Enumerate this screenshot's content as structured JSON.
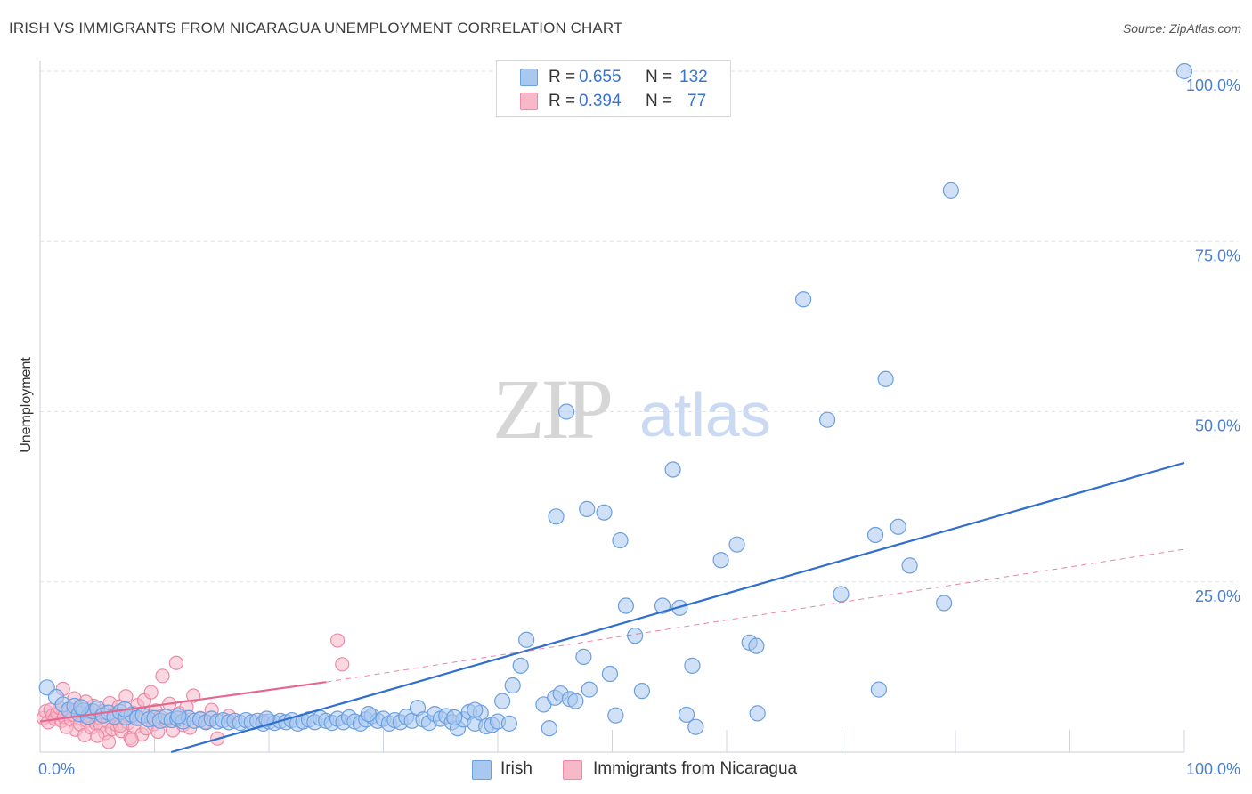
{
  "title": "IRISH VS IMMIGRANTS FROM NICARAGUA UNEMPLOYMENT CORRELATION CHART",
  "source": "Source: ZipAtlas.com",
  "watermark": {
    "zip": "ZIP",
    "atlas": "atlas"
  },
  "colors": {
    "irish_fill": "#a9c8f0",
    "irish_stroke": "#6a9fe0",
    "irish_line": "#2e6fcf",
    "nic_fill": "#f7b8c8",
    "nic_stroke": "#ec8aa6",
    "nic_line": "#e6678e",
    "grid": "#dde1e8",
    "tick": "#4a7fd0"
  },
  "legend_top": {
    "rows": [
      {
        "r_label": "R =",
        "r_value": "0.655",
        "n_label": "N =",
        "n_value": "132"
      },
      {
        "r_label": "R =",
        "r_value": "0.394",
        "n_label": "N =",
        "n_value": "77"
      }
    ]
  },
  "bottom_legend": {
    "irish": "Irish",
    "nicaragua": "Immigrants from Nicaragua"
  },
  "chart_data": {
    "type": "scatter",
    "ylabel": "Unemployment",
    "xlim": [
      0,
      100
    ],
    "ylim": [
      0,
      100
    ],
    "x_tick_labels": [
      "0.0%",
      "100.0%"
    ],
    "y_tick_labels": [
      "100.0%",
      "75.0%",
      "50.0%",
      "25.0%"
    ],
    "y_tick_values": [
      100,
      75,
      50,
      25
    ],
    "grid": true,
    "series": [
      {
        "name": "Irish",
        "stats": {
          "R": 0.655,
          "N": 132
        },
        "trend": {
          "x0": 0,
          "y0": -5.5,
          "x1": 100,
          "y1": 42.5,
          "dashed_ext": false
        },
        "points": [
          [
            0.6,
            9.5
          ],
          [
            1.4,
            8.1
          ],
          [
            2.0,
            7.0
          ],
          [
            2.5,
            6.2
          ],
          [
            3.0,
            6.8
          ],
          [
            3.4,
            5.6
          ],
          [
            3.8,
            6.1
          ],
          [
            4.2,
            5.2
          ],
          [
            4.6,
            6.0
          ],
          [
            5.0,
            6.4
          ],
          [
            5.5,
            5.4
          ],
          [
            6.0,
            5.8
          ],
          [
            6.5,
            5.2
          ],
          [
            7.0,
            5.9
          ],
          [
            7.5,
            5.1
          ],
          [
            8.0,
            5.5
          ],
          [
            8.5,
            5.0
          ],
          [
            9.0,
            5.4
          ],
          [
            9.5,
            4.8
          ],
          [
            10.0,
            5.0
          ],
          [
            10.5,
            4.6
          ],
          [
            11.0,
            5.2
          ],
          [
            11.5,
            4.7
          ],
          [
            12.0,
            4.9
          ],
          [
            12.5,
            4.5
          ],
          [
            13.0,
            5.0
          ],
          [
            13.5,
            4.6
          ],
          [
            14.0,
            4.8
          ],
          [
            14.5,
            4.4
          ],
          [
            15.0,
            4.9
          ],
          [
            15.5,
            4.5
          ],
          [
            16.0,
            4.7
          ],
          [
            16.5,
            4.4
          ],
          [
            17.0,
            4.6
          ],
          [
            17.5,
            4.3
          ],
          [
            18.0,
            4.7
          ],
          [
            18.5,
            4.4
          ],
          [
            19.0,
            4.6
          ],
          [
            19.5,
            4.2
          ],
          [
            20.0,
            4.5
          ],
          [
            20.5,
            4.3
          ],
          [
            21.0,
            4.6
          ],
          [
            21.5,
            4.4
          ],
          [
            22.0,
            4.7
          ],
          [
            22.5,
            4.2
          ],
          [
            23.0,
            4.5
          ],
          [
            23.5,
            4.8
          ],
          [
            24.0,
            4.4
          ],
          [
            24.5,
            5.0
          ],
          [
            25.0,
            4.6
          ],
          [
            25.5,
            4.3
          ],
          [
            26.0,
            4.9
          ],
          [
            26.5,
            4.4
          ],
          [
            27.0,
            5.1
          ],
          [
            27.5,
            4.5
          ],
          [
            28.0,
            4.2
          ],
          [
            28.5,
            4.8
          ],
          [
            29.0,
            5.3
          ],
          [
            29.5,
            4.6
          ],
          [
            30.0,
            4.9
          ],
          [
            30.5,
            4.2
          ],
          [
            31.0,
            4.7
          ],
          [
            31.5,
            4.4
          ],
          [
            32.0,
            5.2
          ],
          [
            32.5,
            4.6
          ],
          [
            33.0,
            6.5
          ],
          [
            33.5,
            4.8
          ],
          [
            34.0,
            4.3
          ],
          [
            34.5,
            5.6
          ],
          [
            35.0,
            4.9
          ],
          [
            35.5,
            5.3
          ],
          [
            36.0,
            4.4
          ],
          [
            36.5,
            3.5
          ],
          [
            37.0,
            4.8
          ],
          [
            37.5,
            5.9
          ],
          [
            38.0,
            4.2
          ],
          [
            38.5,
            5.8
          ],
          [
            39.0,
            3.8
          ],
          [
            39.5,
            4.0
          ],
          [
            40.0,
            4.5
          ],
          [
            3.6,
            6.6
          ],
          [
            7.4,
            6.3
          ],
          [
            12.1,
            5.3
          ],
          [
            19.8,
            4.9
          ],
          [
            28.7,
            5.6
          ],
          [
            36.2,
            5.1
          ],
          [
            40.4,
            7.5
          ],
          [
            41.3,
            9.8
          ],
          [
            42.0,
            12.7
          ],
          [
            44.0,
            7.0
          ],
          [
            45.0,
            8.0
          ],
          [
            45.5,
            8.6
          ],
          [
            46.3,
            7.8
          ],
          [
            46.8,
            7.5
          ],
          [
            47.5,
            14.0
          ],
          [
            48.0,
            9.2
          ],
          [
            44.5,
            3.5
          ],
          [
            47.8,
            35.7
          ],
          [
            49.3,
            35.2
          ],
          [
            45.1,
            34.6
          ],
          [
            50.7,
            31.1
          ],
          [
            52.0,
            17.1
          ],
          [
            52.6,
            9.0
          ],
          [
            50.3,
            5.4
          ],
          [
            49.8,
            11.5
          ],
          [
            51.2,
            21.5
          ],
          [
            56.5,
            5.5
          ],
          [
            57.3,
            3.7
          ],
          [
            55.3,
            41.5
          ],
          [
            55.9,
            21.2
          ],
          [
            57.0,
            12.7
          ],
          [
            60.9,
            30.5
          ],
          [
            59.5,
            28.2
          ],
          [
            62.0,
            16.1
          ],
          [
            62.6,
            15.6
          ],
          [
            62.7,
            5.7
          ],
          [
            66.7,
            66.5
          ],
          [
            68.8,
            48.8
          ],
          [
            70.0,
            23.2
          ],
          [
            73.0,
            31.9
          ],
          [
            73.3,
            9.2
          ],
          [
            73.9,
            54.8
          ],
          [
            75.0,
            33.1
          ],
          [
            76.0,
            27.4
          ],
          [
            79.0,
            21.9
          ],
          [
            79.6,
            82.5
          ],
          [
            100.0,
            100.0
          ],
          [
            54.4,
            21.5
          ],
          [
            46.0,
            50.0
          ],
          [
            42.5,
            16.5
          ],
          [
            38.0,
            6.2
          ],
          [
            41.0,
            4.2
          ]
        ]
      },
      {
        "name": "Immigrants from Nicaragua",
        "stats": {
          "R": 0.394,
          "N": 77
        },
        "trend": {
          "x0": 0,
          "y0": 4.5,
          "x1": 25,
          "y1": 10.3,
          "ext_x1": 100,
          "ext_y1": 29.8,
          "dashed_ext": true
        },
        "points": [
          [
            0.3,
            5.0
          ],
          [
            0.5,
            6.0
          ],
          [
            0.7,
            4.4
          ],
          [
            0.9,
            6.2
          ],
          [
            1.1,
            5.4
          ],
          [
            1.3,
            4.9
          ],
          [
            1.5,
            5.7
          ],
          [
            1.7,
            6.5
          ],
          [
            1.9,
            4.6
          ],
          [
            2.1,
            5.2
          ],
          [
            2.3,
            3.7
          ],
          [
            2.5,
            6.1
          ],
          [
            2.7,
            4.8
          ],
          [
            2.9,
            5.5
          ],
          [
            3.1,
            3.3
          ],
          [
            3.3,
            6.4
          ],
          [
            3.5,
            4.1
          ],
          [
            3.7,
            5.3
          ],
          [
            3.9,
            2.5
          ],
          [
            4.1,
            4.6
          ],
          [
            4.3,
            5.9
          ],
          [
            4.5,
            3.6
          ],
          [
            4.7,
            6.8
          ],
          [
            4.9,
            4.2
          ],
          [
            5.1,
            5.1
          ],
          [
            5.3,
            3.9
          ],
          [
            5.5,
            6.0
          ],
          [
            5.7,
            2.8
          ],
          [
            5.9,
            4.5
          ],
          [
            6.1,
            7.2
          ],
          [
            6.3,
            3.4
          ],
          [
            6.5,
            5.6
          ],
          [
            6.7,
            4.0
          ],
          [
            6.9,
            6.7
          ],
          [
            7.1,
            3.1
          ],
          [
            7.3,
            5.0
          ],
          [
            7.5,
            8.2
          ],
          [
            7.7,
            4.3
          ],
          [
            7.9,
            2.1
          ],
          [
            8.1,
            5.8
          ],
          [
            8.3,
            3.7
          ],
          [
            8.5,
            6.9
          ],
          [
            8.7,
            4.9
          ],
          [
            8.9,
            2.6
          ],
          [
            9.1,
            7.6
          ],
          [
            9.3,
            3.5
          ],
          [
            9.5,
            5.4
          ],
          [
            9.7,
            8.8
          ],
          [
            9.9,
            4.1
          ],
          [
            10.1,
            6.1
          ],
          [
            10.3,
            3.0
          ],
          [
            10.5,
            5.2
          ],
          [
            10.7,
            11.2
          ],
          [
            11.0,
            4.6
          ],
          [
            11.3,
            7.1
          ],
          [
            11.6,
            3.2
          ],
          [
            11.9,
            13.1
          ],
          [
            12.2,
            5.7
          ],
          [
            12.5,
            4.0
          ],
          [
            12.8,
            6.6
          ],
          [
            13.1,
            3.6
          ],
          [
            13.4,
            8.3
          ],
          [
            14.0,
            5.0
          ],
          [
            14.5,
            4.4
          ],
          [
            15.0,
            6.2
          ],
          [
            15.5,
            2.0
          ],
          [
            16.5,
            5.3
          ],
          [
            19.5,
            4.6
          ],
          [
            26.0,
            16.4
          ],
          [
            26.4,
            12.9
          ],
          [
            2.0,
            9.3
          ],
          [
            3.0,
            7.9
          ],
          [
            4.0,
            7.4
          ],
          [
            5.0,
            2.4
          ],
          [
            6.0,
            1.5
          ],
          [
            7.0,
            3.9
          ],
          [
            8.0,
            1.8
          ]
        ]
      }
    ]
  }
}
